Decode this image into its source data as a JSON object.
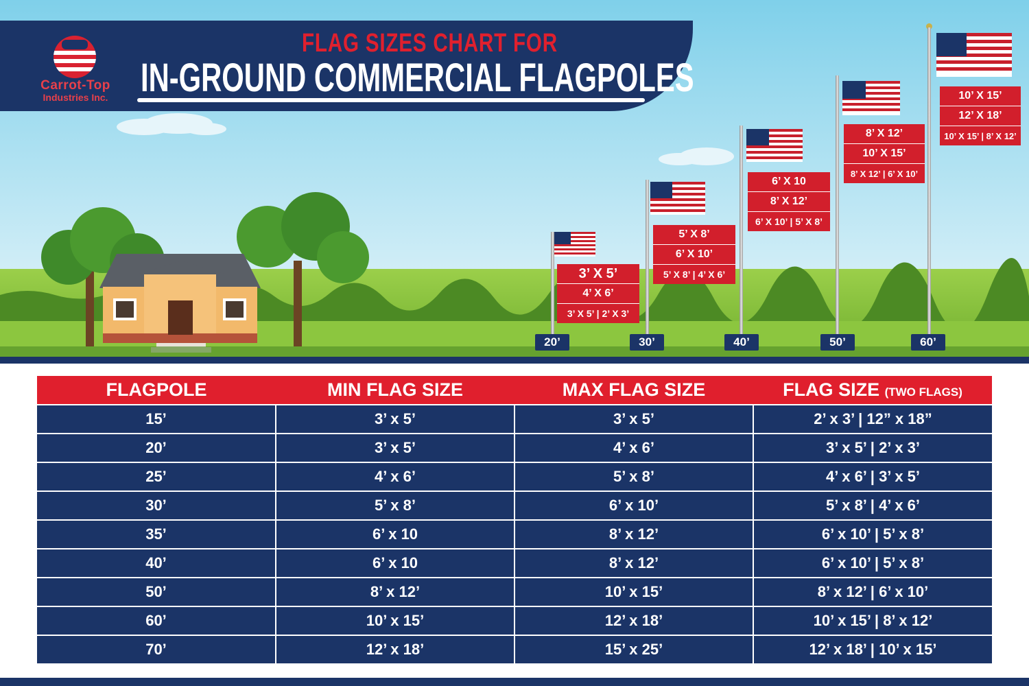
{
  "colors": {
    "navy": "#1b3467",
    "red": "#d92231",
    "sky": "#8fd3ea",
    "grass": "#8cc63f"
  },
  "logo": {
    "line1": "Carrot-Top",
    "line2": "Industries Inc."
  },
  "title": {
    "line1": "FLAG SIZES CHART FOR",
    "line2": "IN-GROUND COMMERCIAL FLAGPOLES"
  },
  "poles": [
    {
      "height_label": "20’",
      "sizes": [
        "3’ X 5’",
        "4’ X 6’",
        "3’ X 5’ | 2’ X 3’"
      ]
    },
    {
      "height_label": "30’",
      "sizes": [
        "5’ X 8’",
        "6’ X 10’",
        "5’ X 8’ | 4’ X 6’"
      ]
    },
    {
      "height_label": "40’",
      "sizes": [
        "6’ X 10",
        "8’ X 12’",
        "6’ X 10’ | 5’ X 8’"
      ]
    },
    {
      "height_label": "50’",
      "sizes": [
        "8’ X 12’",
        "10’ X 15’",
        "8’ X 12’ | 6’ X 10’"
      ]
    },
    {
      "height_label": "60’",
      "sizes": [
        "10’ X 15’",
        "12’ X 18’",
        "10’ X 15’ | 8’ X 12’"
      ]
    }
  ],
  "table": {
    "headers": [
      "FLAGPOLE",
      "MIN FLAG SIZE",
      "MAX FLAG SIZE",
      "FLAG SIZE"
    ],
    "header_note": "(TWO FLAGS)",
    "rows": [
      [
        "15’",
        "3’ x 5’",
        "3’ x 5’",
        "2’ x 3’ | 12” x 18”"
      ],
      [
        "20’",
        "3’ x 5’",
        "4’ x 6’",
        "3’ x 5’ | 2’ x 3’"
      ],
      [
        "25’",
        "4’ x 6’",
        "5’ x 8’",
        "4’ x 6’ | 3’ x 5’"
      ],
      [
        "30’",
        "5’ x 8’",
        "6’ x 10’",
        "5’ x 8’ | 4’ x 6’"
      ],
      [
        "35’",
        "6’ x 10",
        "8’ x 12’",
        "6’ x 10’ | 5’ x 8’"
      ],
      [
        "40’",
        "6’ x 10",
        "8’ x 12’",
        "6’ x 10’ | 5’ x 8’"
      ],
      [
        "50’",
        "8’ x 12’",
        "10’ x 15’",
        "8’ x 12’ | 6’ x 10’"
      ],
      [
        "60’",
        "10’ x 15’",
        "12’ x 18’",
        "10’ x 15’ | 8’ x 12’"
      ],
      [
        "70’",
        "12’ x 18’",
        "15’ x 25’",
        "12’ x 18’ | 10’ x 15’"
      ]
    ]
  }
}
